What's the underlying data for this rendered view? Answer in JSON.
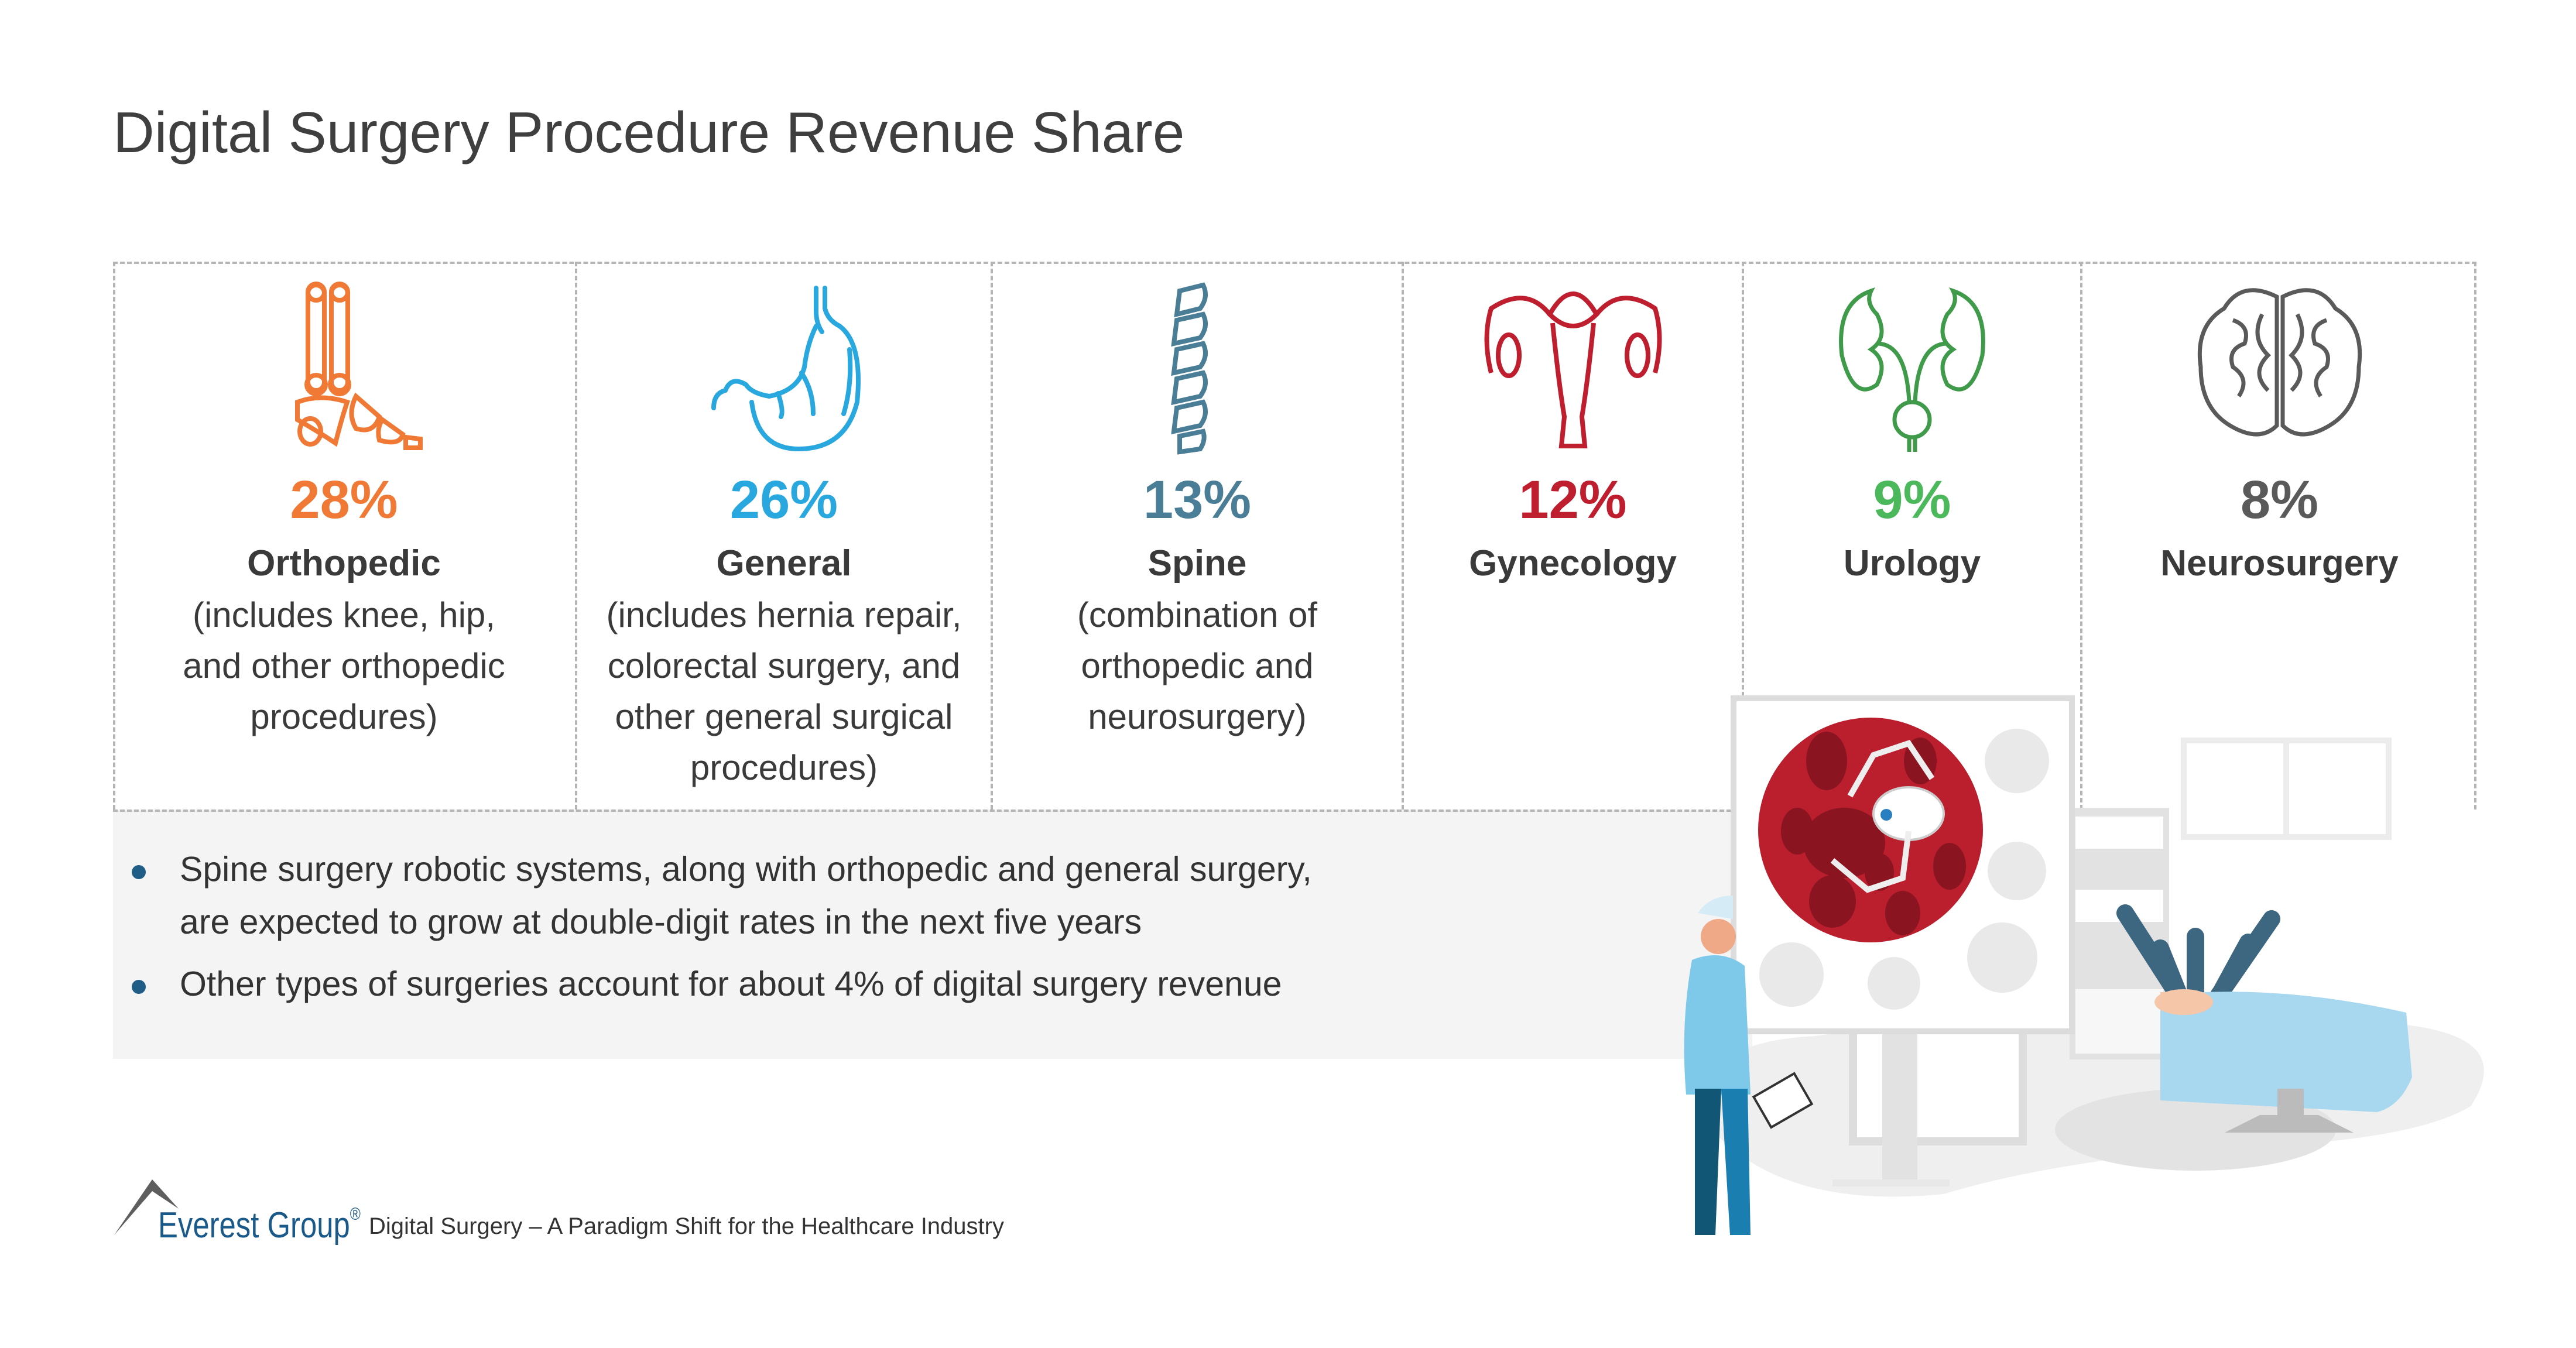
{
  "title": "Digital Surgery Procedure Revenue Share",
  "colors": {
    "orthopedic": "#f07a35",
    "general": "#29a8e0",
    "spine": "#4a7d96",
    "gynecology": "#be1e2d",
    "urology": "#4cb85c",
    "neurosurgery": "#5a5a5a",
    "bullet": "#1f5c86",
    "brand": "#1a5a8a"
  },
  "categories": [
    {
      "percent": "28%",
      "name": "Orthopedic",
      "icon": "foot-bone-icon",
      "desc": [
        "(includes knee, hip,",
        "and other orthopedic",
        "procedures)"
      ]
    },
    {
      "percent": "26%",
      "name": "General",
      "icon": "stomach-icon",
      "desc": [
        "(includes hernia repair,",
        "colorectal surgery, and",
        "other general surgical",
        "procedures)"
      ]
    },
    {
      "percent": "13%",
      "name": "Spine",
      "icon": "spine-icon",
      "desc": [
        "(combination of",
        "orthopedic and",
        "neurosurgery)"
      ]
    },
    {
      "percent": "12%",
      "name": "Gynecology",
      "icon": "uterus-icon",
      "desc": []
    },
    {
      "percent": "9%",
      "name": "Urology",
      "icon": "kidney-icon",
      "desc": []
    },
    {
      "percent": "8%",
      "name": "Neurosurgery",
      "icon": "brain-icon",
      "desc": []
    }
  ],
  "bullets": [
    [
      "Spine surgery robotic systems, along with orthopedic and general surgery,",
      "are expected to grow at double-digit rates in the next five years"
    ],
    [
      "Other types of surgeries account for about 4% of digital surgery revenue"
    ]
  ],
  "footer": {
    "brand": "Everest Group",
    "registered": "®",
    "text": "Digital Surgery – A Paradigm Shift for the Healthcare Industry"
  }
}
